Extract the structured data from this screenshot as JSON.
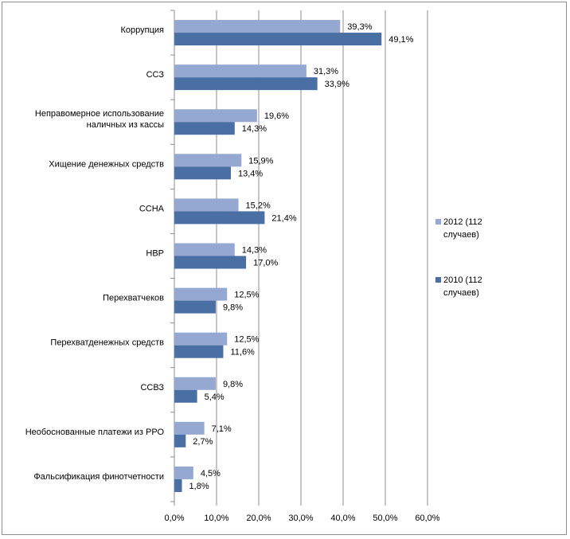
{
  "chart_data": {
    "type": "bar",
    "orientation": "horizontal",
    "categories": [
      [
        "Коррупция"
      ],
      [
        "ССЗ"
      ],
      [
        "Неправомерное использование",
        "наличных из кассы"
      ],
      [
        "Хищение денежных средств"
      ],
      [
        "ССНА"
      ],
      [
        "НВР"
      ],
      [
        "Перехватчеков"
      ],
      [
        "Перехватденежных средств"
      ],
      [
        "ССВЗ"
      ],
      [
        "Необоснованные платежи из РРО"
      ],
      [
        "Фальсификация финотчетности"
      ]
    ],
    "series": [
      {
        "name": [
          "2012 (112",
          "случаев)"
        ],
        "color": "#95a8d2",
        "values": [
          39.3,
          31.3,
          19.6,
          15.9,
          15.2,
          14.3,
          12.5,
          12.5,
          9.8,
          7.1,
          4.5
        ],
        "labels": [
          "39,3%",
          "31,3%",
          "19,6%",
          "15,9%",
          "15,2%",
          "14,3%",
          "12,5%",
          "12,5%",
          "9,8%",
          "7,1%",
          "4,5%"
        ]
      },
      {
        "name": [
          "2010 (112",
          "случаев)"
        ],
        "color": "#4a6fa5",
        "values": [
          49.1,
          33.9,
          14.3,
          13.4,
          21.4,
          17.0,
          9.8,
          11.6,
          5.4,
          2.7,
          1.8
        ],
        "labels": [
          "49,1%",
          "33,9%",
          "14,3%",
          "13,4%",
          "21,4%",
          "17,0%",
          "9,8%",
          "11,6%",
          "5,4%",
          "2,7%",
          "1,8%"
        ]
      }
    ],
    "xlim": [
      0,
      60
    ],
    "xticks": [
      "0,0%",
      "10,0%",
      "20,0%",
      "30,0%",
      "40,0%",
      "50,0%",
      "60,0%"
    ],
    "grid": true,
    "legend_position": "right"
  }
}
